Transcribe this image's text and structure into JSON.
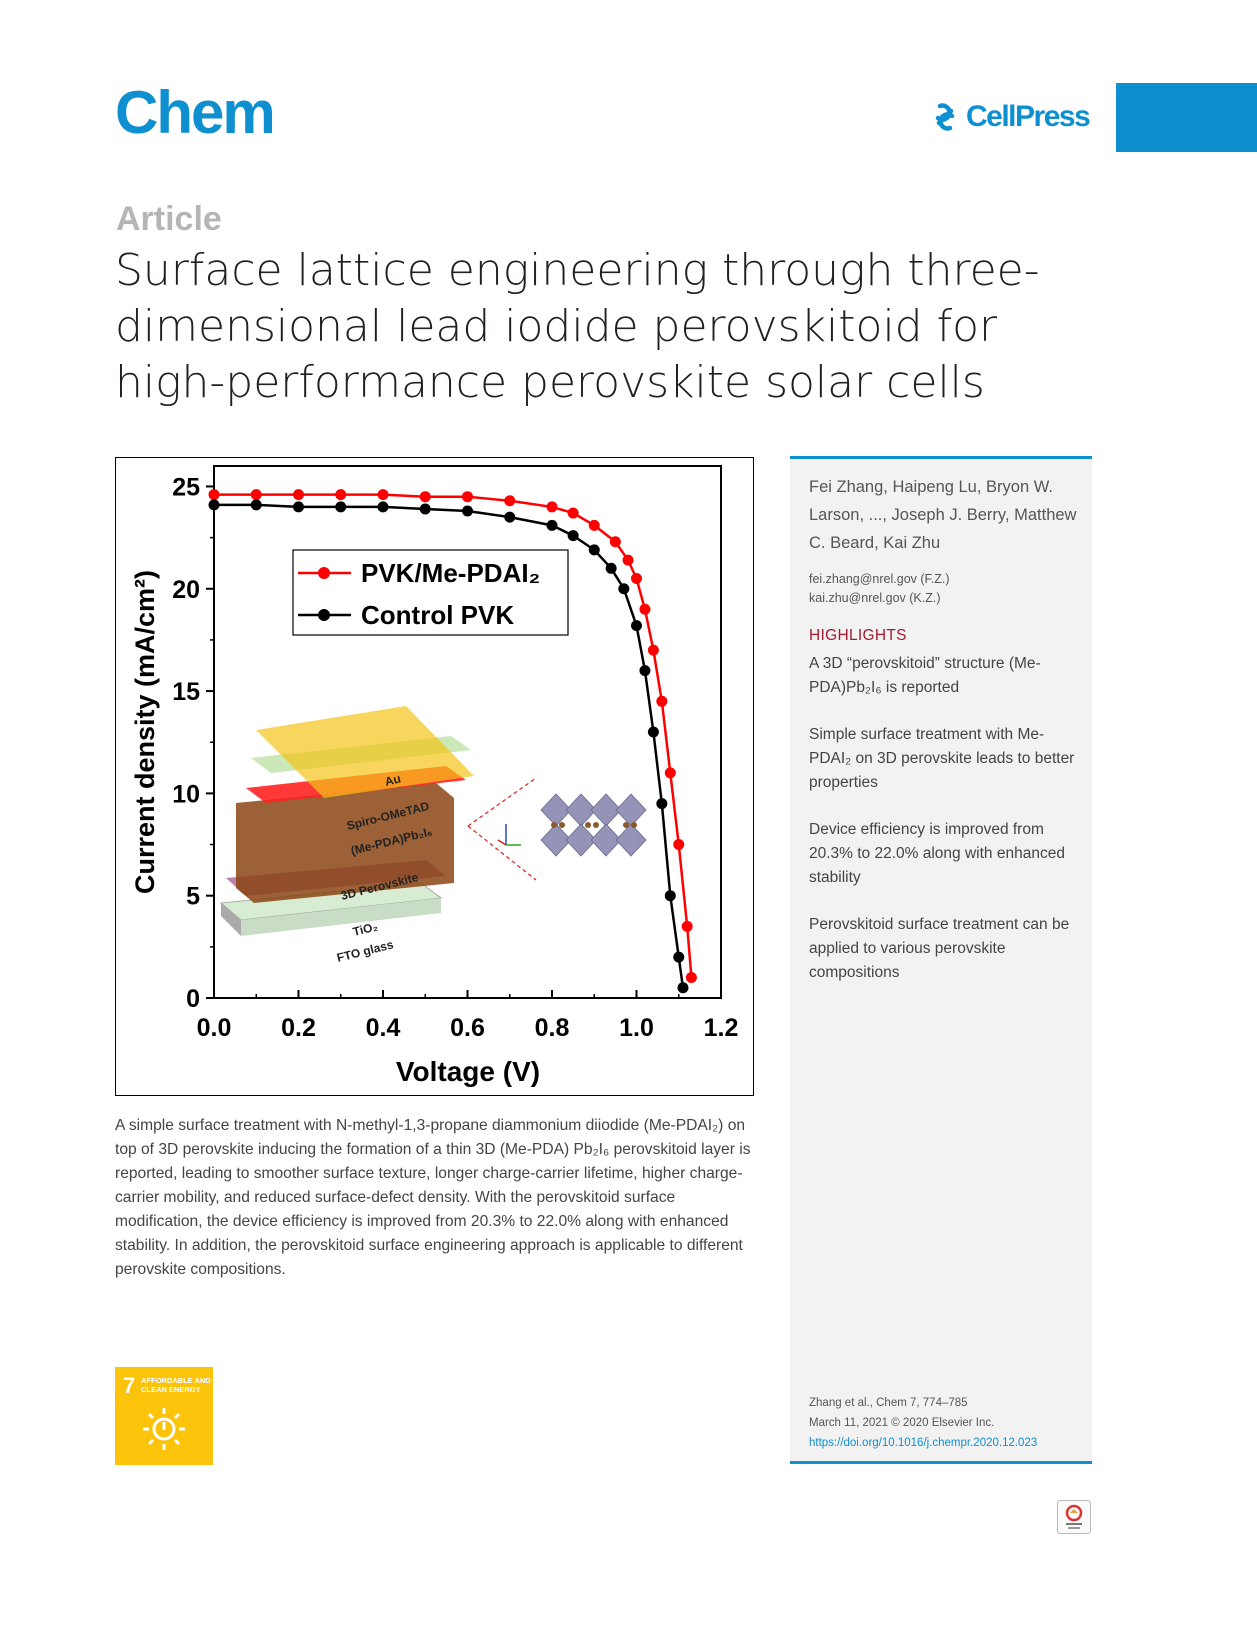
{
  "header": {
    "journal": "Chem",
    "publisher": "CellPress",
    "brand_color": "#0e8fd0"
  },
  "article": {
    "type": "Article",
    "title": "Surface lattice engineering through three-dimensional lead iodide perovskitoid for high-performance perovskite solar cells"
  },
  "figure": {
    "inset_layers": [
      "Au",
      "Spiro-OMeTAD",
      "(Me-PDA)Pb₂I₆",
      "3D Perovskite",
      "TiO₂",
      "FTO glass"
    ]
  },
  "chart_data": {
    "type": "line",
    "xlabel": "Voltage (V)",
    "ylabel": "Current density  (mA/cm²)",
    "xlim": [
      0.0,
      1.2
    ],
    "ylim": [
      0,
      26
    ],
    "xticks": [
      "0.0",
      "0.2",
      "0.4",
      "0.6",
      "0.8",
      "1.0",
      "1.2"
    ],
    "yticks": [
      "0",
      "5",
      "10",
      "15",
      "20",
      "25"
    ],
    "legend_position": "top-center",
    "series": [
      {
        "name": "PVK/Me-PDAI₂",
        "color": "#ff0000",
        "x": [
          0.0,
          0.1,
          0.2,
          0.3,
          0.4,
          0.5,
          0.6,
          0.7,
          0.8,
          0.85,
          0.9,
          0.95,
          0.98,
          1.0,
          1.02,
          1.04,
          1.06,
          1.08,
          1.1,
          1.12,
          1.13
        ],
        "y": [
          24.6,
          24.6,
          24.6,
          24.6,
          24.6,
          24.5,
          24.5,
          24.3,
          24.0,
          23.7,
          23.1,
          22.3,
          21.4,
          20.5,
          19.0,
          17.0,
          14.5,
          11.0,
          7.5,
          3.5,
          1.0
        ]
      },
      {
        "name": "Control PVK",
        "color": "#000000",
        "x": [
          0.0,
          0.1,
          0.2,
          0.3,
          0.4,
          0.5,
          0.6,
          0.7,
          0.8,
          0.85,
          0.9,
          0.94,
          0.97,
          1.0,
          1.02,
          1.04,
          1.06,
          1.08,
          1.1,
          1.11
        ],
        "y": [
          24.1,
          24.1,
          24.0,
          24.0,
          24.0,
          23.9,
          23.8,
          23.5,
          23.1,
          22.6,
          21.9,
          21.0,
          20.0,
          18.2,
          16.0,
          13.0,
          9.5,
          5.0,
          2.0,
          0.5
        ]
      }
    ]
  },
  "abstract": {
    "text": "A simple surface treatment with N-methyl-1,3-propane diammonium diiodide (Me-PDAI₂) on top of 3D perovskite inducing the formation of a thin 3D (Me-PDA) Pb₂I₆ perovskitoid layer is reported, leading to smoother surface texture, longer charge-carrier lifetime, higher charge-carrier mobility, and reduced surface-defect density. With the perovskitoid surface modification, the device efficiency is improved from 20.3% to 22.0% along with enhanced stability. In addition, the perovskitoid surface engineering approach is applicable to different perovskite compositions."
  },
  "sdg": {
    "number": "7",
    "label": "AFFORDABLE AND CLEAN ENERGY",
    "color": "#fcc30b"
  },
  "sidebar": {
    "authors": "Fei Zhang, Haipeng Lu, Bryon W. Larson, ..., Joseph J. Berry, Matthew C. Beard, Kai Zhu",
    "emails": [
      "fei.zhang@nrel.gov (F.Z.)",
      "kai.zhu@nrel.gov (K.Z.)"
    ],
    "highlights_heading": "HIGHLIGHTS",
    "highlights": [
      "A 3D “perovskitoid” structure (Me-PDA)Pb₂I₆ is reported",
      "Simple surface treatment with Me-PDAI₂ on 3D perovskite leads to better properties",
      "Device efficiency is improved from 20.3% to 22.0% along with enhanced stability",
      "Perovskitoid surface treatment can be applied to various perovskite compositions"
    ],
    "citation": [
      "Zhang et al., Chem 7, 774–785",
      "March 11, 2021 © 2020 Elsevier Inc."
    ],
    "doi": "https://doi.org/10.1016/j.chempr.2020.12.023"
  },
  "badges": {
    "check_updates_icon": "check-for-updates-icon"
  }
}
